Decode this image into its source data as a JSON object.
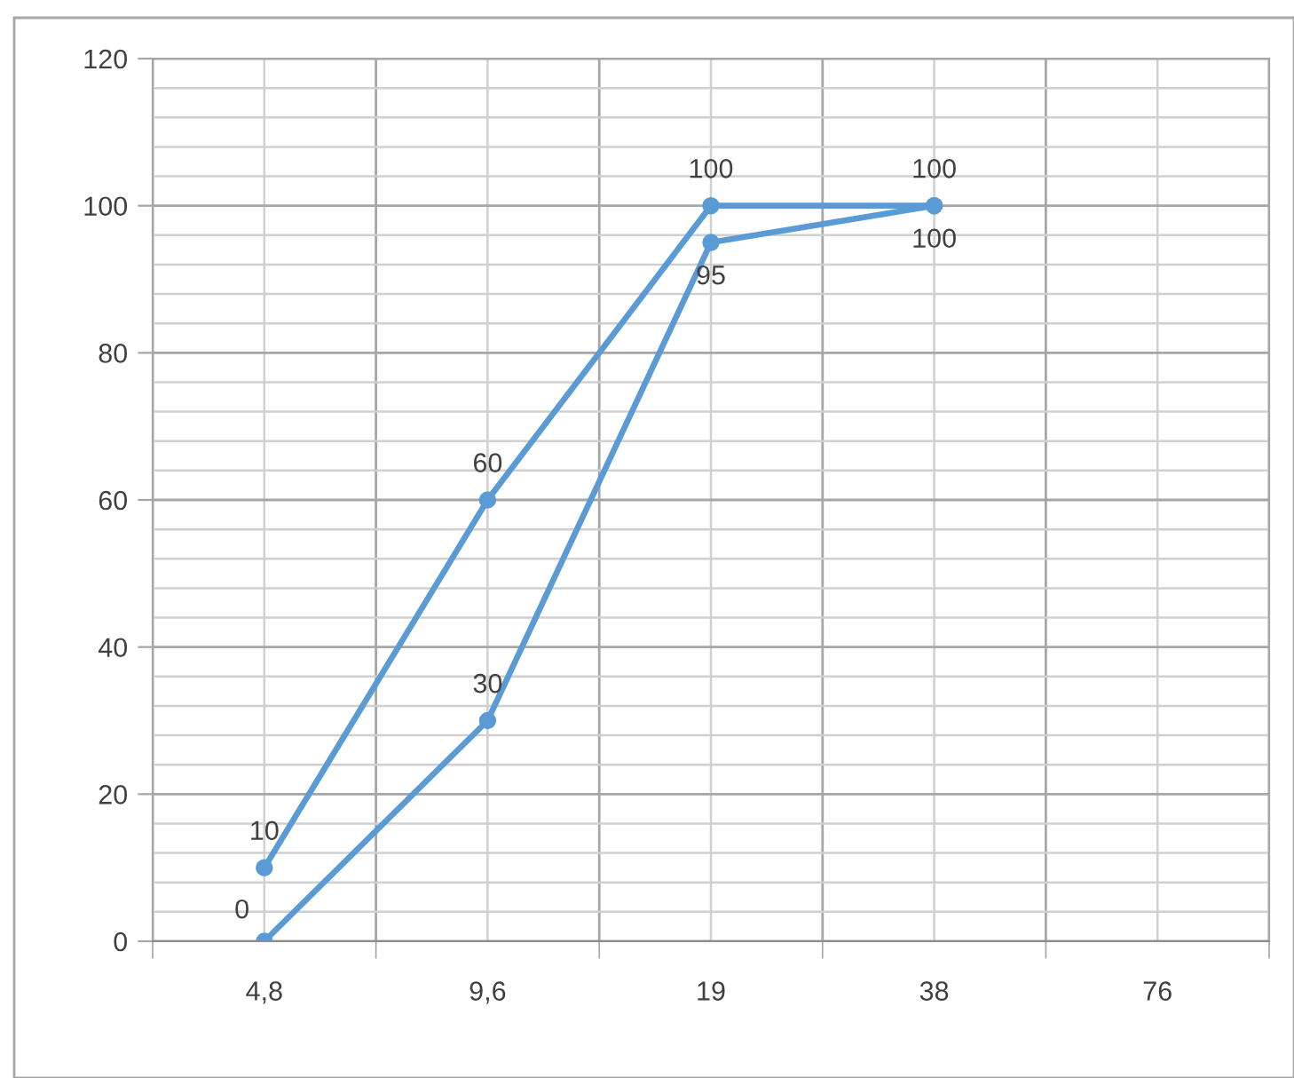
{
  "chart_data": {
    "type": "line",
    "categories": [
      "4,8",
      "9,6",
      "19",
      "38",
      "76"
    ],
    "series": [
      {
        "color": "#5b9bd5",
        "values": [
          10,
          60,
          100,
          100,
          null
        ]
      },
      {
        "color": "#5b9bd5",
        "values": [
          0,
          30,
          95,
          100,
          null
        ]
      }
    ],
    "ylim": [
      0,
      120
    ],
    "yticks": [
      0,
      20,
      40,
      60,
      80,
      100,
      120
    ],
    "grid": true,
    "marker": "circle",
    "line_style": "solid",
    "data_labels": true
  }
}
